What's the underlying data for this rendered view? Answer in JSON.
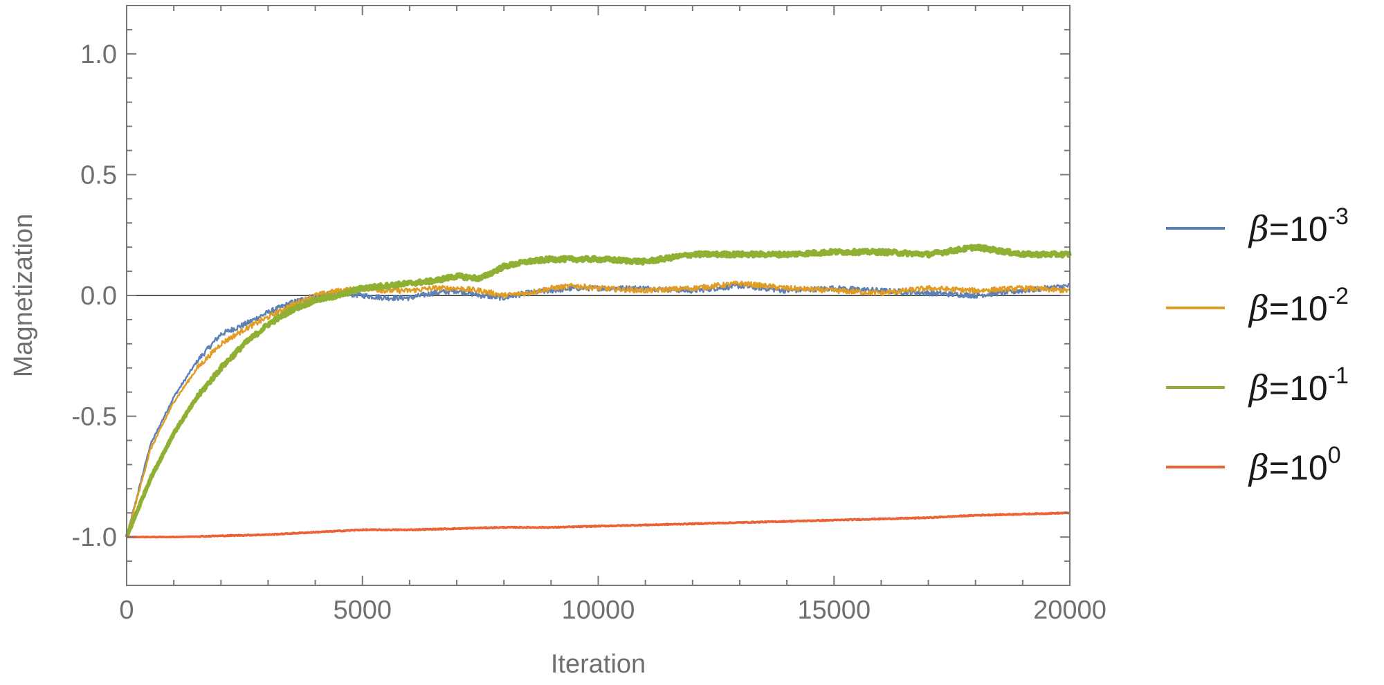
{
  "chart_data": {
    "type": "line",
    "title": "",
    "xlabel": "Iteration",
    "ylabel": "Magnetization",
    "xlim": [
      0,
      20000
    ],
    "ylim": [
      -1.2,
      1.2
    ],
    "x_ticks": [
      0,
      5000,
      10000,
      15000,
      20000
    ],
    "x_tick_labels": [
      "0",
      "5000",
      "10000",
      "15000",
      "20000"
    ],
    "y_ticks": [
      -1.0,
      -0.5,
      0.0,
      0.5,
      1.0
    ],
    "y_tick_labels": [
      "-1.0",
      "-0.5",
      "0.0",
      "0.5",
      "1.0"
    ],
    "grid": false,
    "zero_line": true,
    "legend_position": "right",
    "series": [
      {
        "name": "β=10^-3",
        "legend_base": "β=10",
        "legend_exp": "-3",
        "color": "#5e81b5",
        "x": [
          0,
          500,
          1000,
          1500,
          2000,
          2500,
          3000,
          3500,
          4000,
          4500,
          5000,
          5500,
          6000,
          6500,
          7000,
          7500,
          8000,
          8500,
          9000,
          9500,
          10000,
          11000,
          12000,
          13000,
          14000,
          15000,
          16000,
          17000,
          18000,
          19000,
          20000
        ],
        "y": [
          -1.0,
          -0.62,
          -0.42,
          -0.27,
          -0.16,
          -0.12,
          -0.07,
          -0.03,
          0.0,
          0.01,
          0.0,
          -0.01,
          -0.01,
          0.01,
          0.02,
          0.0,
          -0.01,
          0.01,
          0.02,
          0.03,
          0.03,
          0.03,
          0.02,
          0.04,
          0.02,
          0.03,
          0.02,
          0.01,
          0.0,
          0.02,
          0.04
        ]
      },
      {
        "name": "β=10^-2",
        "legend_base": "β=10",
        "legend_exp": "-2",
        "color": "#e19c24",
        "x": [
          0,
          500,
          1000,
          1500,
          2000,
          2500,
          3000,
          3500,
          4000,
          4500,
          5000,
          5500,
          6000,
          6500,
          7000,
          7500,
          8000,
          8500,
          9000,
          9500,
          10000,
          11000,
          12000,
          13000,
          14000,
          15000,
          16000,
          17000,
          18000,
          19000,
          20000
        ],
        "y": [
          -1.0,
          -0.64,
          -0.44,
          -0.3,
          -0.2,
          -0.14,
          -0.09,
          -0.04,
          0.0,
          0.02,
          0.03,
          0.02,
          0.02,
          0.03,
          0.03,
          0.02,
          0.0,
          0.01,
          0.03,
          0.04,
          0.03,
          0.02,
          0.03,
          0.05,
          0.03,
          0.02,
          0.01,
          0.03,
          0.02,
          0.03,
          0.02
        ]
      },
      {
        "name": "β=10^-1",
        "legend_base": "β=10",
        "legend_exp": "-1",
        "color": "#8fb032",
        "x": [
          0,
          500,
          1000,
          1500,
          2000,
          2500,
          3000,
          3500,
          4000,
          4500,
          5000,
          5500,
          6000,
          6500,
          7000,
          7500,
          8000,
          8500,
          9000,
          9500,
          10000,
          11000,
          12000,
          13000,
          14000,
          15000,
          16000,
          17000,
          18000,
          19000,
          20000
        ],
        "y": [
          -1.0,
          -0.76,
          -0.57,
          -0.42,
          -0.3,
          -0.2,
          -0.12,
          -0.06,
          -0.02,
          0.0,
          0.03,
          0.04,
          0.05,
          0.06,
          0.08,
          0.07,
          0.12,
          0.14,
          0.15,
          0.15,
          0.15,
          0.14,
          0.17,
          0.17,
          0.17,
          0.18,
          0.18,
          0.17,
          0.2,
          0.17,
          0.17
        ]
      },
      {
        "name": "β=10^0",
        "legend_base": "β=10",
        "legend_exp": "0",
        "color": "#eb6235",
        "x": [
          0,
          1000,
          2000,
          3000,
          4000,
          5000,
          6000,
          7000,
          8000,
          9000,
          10000,
          11000,
          12000,
          13000,
          14000,
          15000,
          16000,
          17000,
          18000,
          19000,
          20000
        ],
        "y": [
          -1.0,
          -1.0,
          -0.995,
          -0.99,
          -0.98,
          -0.97,
          -0.97,
          -0.965,
          -0.96,
          -0.96,
          -0.955,
          -0.95,
          -0.945,
          -0.94,
          -0.935,
          -0.93,
          -0.925,
          -0.92,
          -0.91,
          -0.905,
          -0.9
        ]
      }
    ]
  }
}
